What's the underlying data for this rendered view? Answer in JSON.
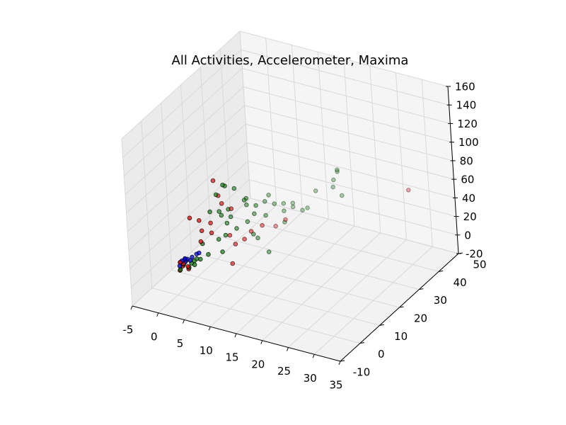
{
  "chart_data": {
    "type": "scatter",
    "projection": "3d",
    "title": "All Activities, Accelerometer, Maxima",
    "xlabel": "",
    "ylabel": "",
    "zlabel": "",
    "grid": true,
    "xlim": [
      -5,
      35
    ],
    "ylim": [
      -10,
      50
    ],
    "zlim": [
      -20,
      160
    ],
    "xticks": [
      "-5",
      "0",
      "5",
      "10",
      "15",
      "20",
      "25",
      "30",
      "35"
    ],
    "yticks": [
      "-10",
      "0",
      "10",
      "20",
      "30",
      "40",
      "50"
    ],
    "zticks": [
      "-20",
      "0",
      "20",
      "40",
      "60",
      "80",
      "100",
      "120",
      "140",
      "160"
    ],
    "series": [
      {
        "color": "#ff0000",
        "points": [
          [
            0.3,
            1,
            5
          ],
          [
            0.5,
            2,
            8
          ],
          [
            0.8,
            1.5,
            12
          ],
          [
            1.2,
            3,
            4
          ],
          [
            0.6,
            0.5,
            15
          ],
          [
            1.5,
            2,
            9
          ],
          [
            5,
            8,
            95
          ],
          [
            5,
            10,
            75
          ],
          [
            6,
            9,
            70
          ],
          [
            7,
            11,
            62
          ],
          [
            3,
            5,
            55
          ],
          [
            4,
            8,
            48
          ],
          [
            4.5,
            7,
            40
          ],
          [
            3.5,
            4,
            35
          ],
          [
            6,
            12,
            30
          ],
          [
            9,
            15,
            33
          ],
          [
            10,
            18,
            35
          ],
          [
            8,
            14,
            25
          ],
          [
            7,
            12,
            22
          ],
          [
            11,
            22,
            28
          ],
          [
            13,
            22,
            38
          ],
          [
            7,
            10,
            5
          ],
          [
            26,
            50,
            35
          ],
          [
            2,
            3,
            60
          ],
          [
            3,
            6,
            42
          ]
        ]
      },
      {
        "color": "#008000",
        "points": [
          [
            0.4,
            1,
            6
          ],
          [
            0.7,
            2,
            10
          ],
          [
            1.0,
            2.5,
            14
          ],
          [
            1.5,
            2.5,
            7
          ],
          [
            1.8,
            3,
            11
          ],
          [
            2.0,
            4,
            12
          ],
          [
            2.2,
            3.5,
            9
          ],
          [
            2.5,
            4,
            15
          ],
          [
            2.8,
            5,
            13
          ],
          [
            6,
            10,
            88
          ],
          [
            6,
            11,
            85
          ],
          [
            5,
            9,
            78
          ],
          [
            7,
            13,
            80
          ],
          [
            8,
            15,
            65
          ],
          [
            4,
            8,
            60
          ],
          [
            5,
            10,
            58
          ],
          [
            6,
            12,
            58
          ],
          [
            8,
            16,
            58
          ],
          [
            9,
            18,
            55
          ],
          [
            10,
            20,
            57
          ],
          [
            10,
            22,
            60
          ],
          [
            9,
            17,
            48
          ],
          [
            6,
            13,
            48
          ],
          [
            5,
            11,
            52
          ],
          [
            11,
            22,
            52
          ],
          [
            12,
            24,
            50
          ],
          [
            13,
            26,
            48
          ],
          [
            13,
            26,
            44
          ],
          [
            12,
            24,
            42
          ],
          [
            10,
            20,
            42
          ],
          [
            8,
            16,
            40
          ],
          [
            7,
            13,
            37
          ],
          [
            6,
            10,
            34
          ],
          [
            5,
            9,
            30
          ],
          [
            9,
            16,
            28
          ],
          [
            16,
            30,
            58
          ],
          [
            18,
            34,
            65
          ],
          [
            18,
            36,
            70
          ],
          [
            18,
            36,
            72
          ],
          [
            17,
            36,
            52
          ],
          [
            17,
            40,
            35
          ],
          [
            9,
            18,
            20
          ],
          [
            11,
            18,
            8
          ],
          [
            12,
            24,
            30
          ],
          [
            14,
            28,
            38
          ],
          [
            15,
            28,
            42
          ],
          [
            8,
            16,
            65
          ],
          [
            6,
            11,
            45
          ],
          [
            3,
            6,
            28
          ],
          [
            4,
            6,
            18
          ],
          [
            6,
            8,
            20
          ]
        ]
      },
      {
        "color": "#0000ff",
        "points": [
          [
            0.5,
            1,
            14
          ],
          [
            1,
            2,
            16
          ],
          [
            1.5,
            2,
            17
          ],
          [
            1.2,
            1.5,
            18
          ],
          [
            0.8,
            1,
            16
          ],
          [
            2,
            3,
            18
          ],
          [
            2.5,
            4,
            20
          ],
          [
            1,
            2,
            13
          ],
          [
            0.5,
            0.5,
            11
          ],
          [
            1.8,
            2.5,
            15
          ],
          [
            3,
            4,
            22
          ]
        ]
      }
    ]
  }
}
